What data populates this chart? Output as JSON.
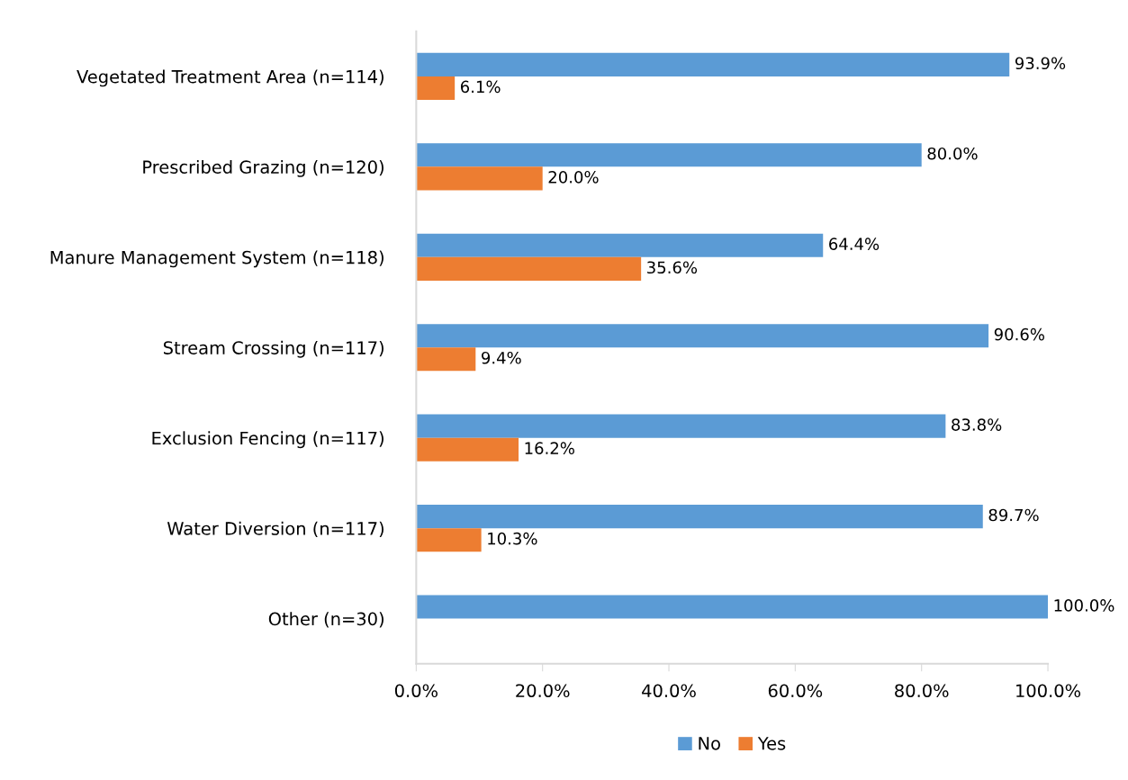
{
  "chart_data": {
    "type": "bar",
    "orientation": "horizontal",
    "categories": [
      "Vegetated Treatment Area (n=114)",
      "Prescribed Grazing (n=120)",
      "Manure Management System (n=118)",
      "Stream Crossing (n=117)",
      "Exclusion Fencing (n=117)",
      "Water Diversion (n=117)",
      "Other (n=30)"
    ],
    "series": [
      {
        "name": "No",
        "color": "#5b9bd5",
        "values": [
          93.9,
          80.0,
          64.4,
          90.6,
          83.8,
          89.7,
          100.0
        ],
        "value_labels": [
          "93.9%",
          "80.0%",
          "64.4%",
          "90.6%",
          "83.8%",
          "89.7%",
          "100.0%"
        ]
      },
      {
        "name": "Yes",
        "color": "#ed7d31",
        "values": [
          6.1,
          20.0,
          35.6,
          9.4,
          16.2,
          10.3,
          null
        ],
        "value_labels": [
          "6.1%",
          "20.0%",
          "35.6%",
          "9.4%",
          "16.2%",
          "10.3%",
          null
        ]
      }
    ],
    "xlim": [
      0,
      100
    ],
    "xticks": [
      {
        "value": 0,
        "label": "0.0%"
      },
      {
        "value": 20,
        "label": "20.0%"
      },
      {
        "value": 40,
        "label": "40.0%"
      },
      {
        "value": 60,
        "label": "60.0%"
      },
      {
        "value": 80,
        "label": "80.0%"
      },
      {
        "value": 100,
        "label": "100.0%"
      }
    ],
    "grid": false,
    "legend": "bottom"
  }
}
